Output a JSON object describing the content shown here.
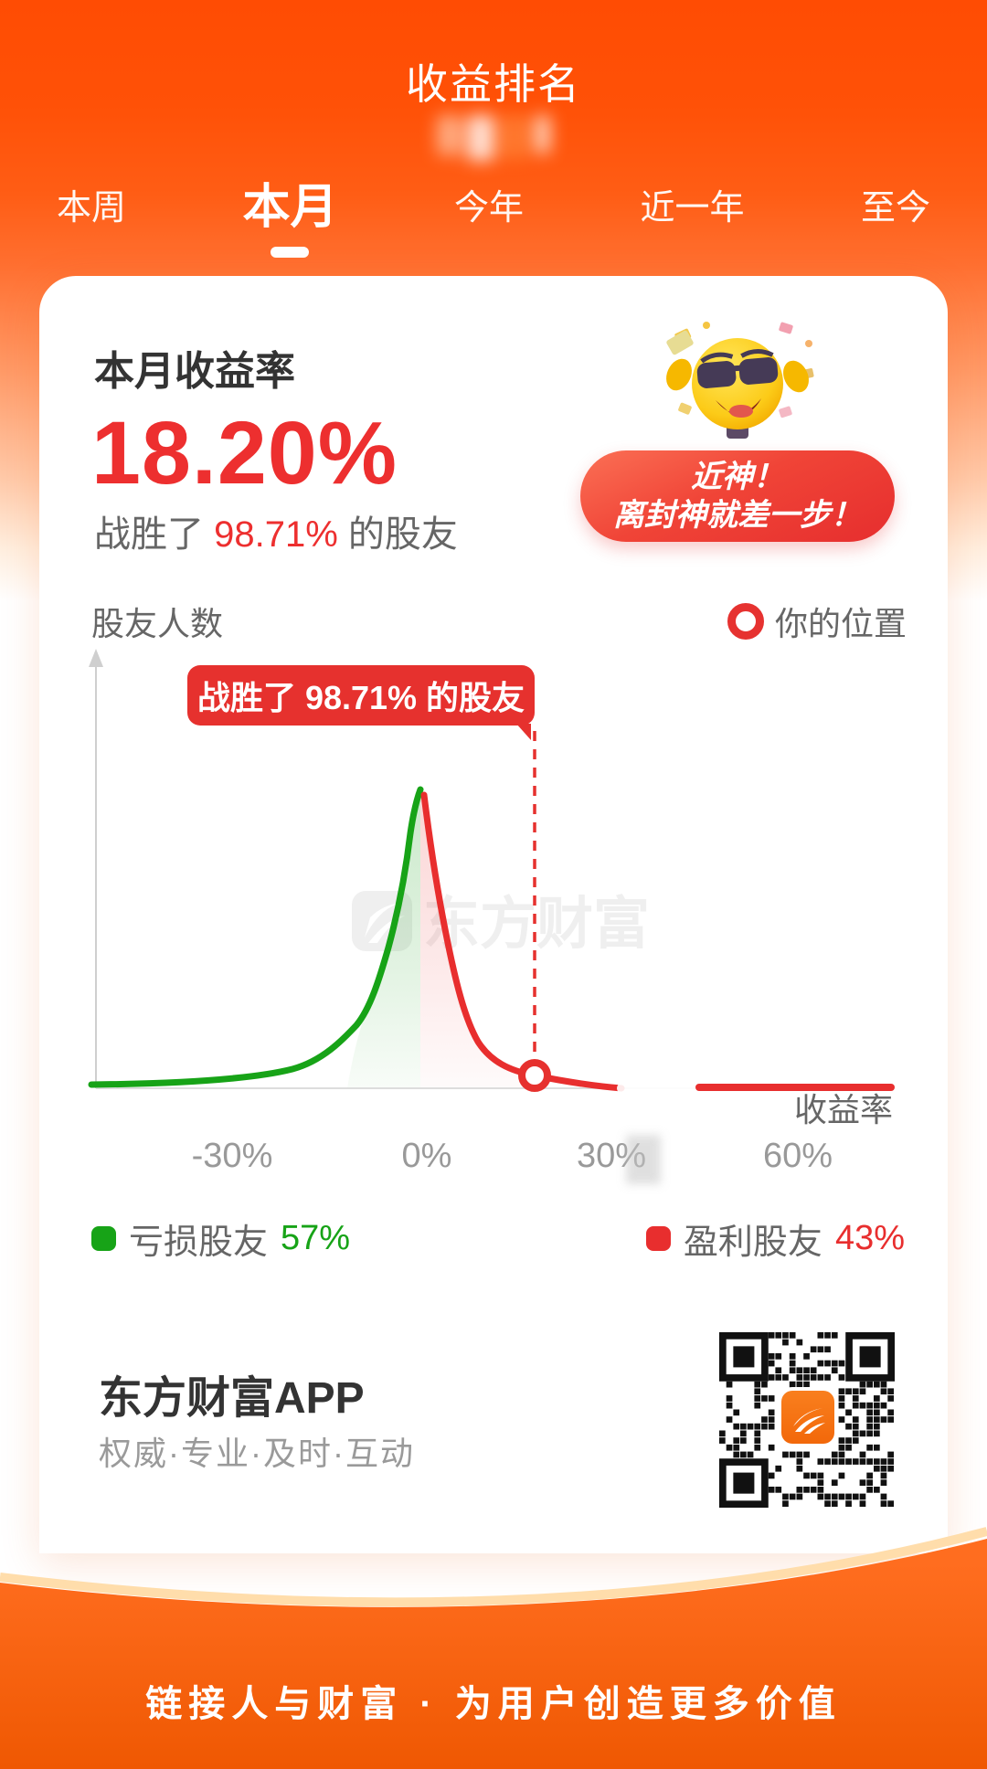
{
  "header": {
    "title": "收益排名"
  },
  "tabs": {
    "items": [
      {
        "label": "本周",
        "active": false
      },
      {
        "label": "本月",
        "active": true
      },
      {
        "label": "今年",
        "active": false
      },
      {
        "label": "近一年",
        "active": false
      },
      {
        "label": "至今",
        "active": false
      }
    ]
  },
  "summary": {
    "metric_label": "本月收益率",
    "return_value": "18.20%",
    "beat_prefix": "战胜了 ",
    "beat_value": "98.71%",
    "beat_suffix": " 的股友",
    "badge_line1": "近神！",
    "badge_line2": "离封神就差一步！",
    "mascot_icon": "money-emoji-with-sunglasses"
  },
  "chart": {
    "y_axis_label": "股友人数",
    "marker_legend": "你的位置",
    "tooltip": "战胜了 98.71% 的股友",
    "x_axis_label": "收益率",
    "watermark": "东方财富",
    "legend": {
      "loss_label": "亏损股友",
      "loss_value": "57%",
      "win_label": "盈利股友",
      "win_value": "43%"
    }
  },
  "chart_data": {
    "type": "area",
    "xlabel": "收益率",
    "ylabel": "股友人数",
    "x_ticks": [
      "-30%",
      "0%",
      "30%",
      "60%"
    ],
    "x_range_pct": [
      -52,
      72
    ],
    "user_position_pct": 18.2,
    "beaten_pct": 98.71,
    "loss_share_pct": 57,
    "win_share_pct": 43,
    "marker_label": "你的位置",
    "annotation": "战胜了 98.71% 的股友",
    "series": [
      {
        "name": "亏损股友",
        "color": "#17a317",
        "points": [
          [
            -52,
            0.01
          ],
          [
            -40,
            0.015
          ],
          [
            -30,
            0.04
          ],
          [
            -24,
            0.09
          ],
          [
            -19,
            0.17
          ],
          [
            -15,
            0.3
          ],
          [
            -12,
            0.47
          ],
          [
            -9,
            0.68
          ],
          [
            -6,
            0.88
          ],
          [
            -3,
            0.97
          ],
          [
            0,
            1.0
          ]
        ]
      },
      {
        "name": "盈利股友",
        "color": "#e82e2e",
        "points": [
          [
            0.6,
            0.97
          ],
          [
            2,
            0.8
          ],
          [
            4,
            0.58
          ],
          [
            6,
            0.37
          ],
          [
            8,
            0.22
          ],
          [
            10,
            0.12
          ],
          [
            13,
            0.07
          ],
          [
            18.2,
            0.045
          ],
          [
            23,
            0.025
          ],
          [
            28,
            0.008
          ],
          [
            34,
            0.005
          ],
          [
            72,
            0.005
          ]
        ]
      }
    ],
    "legend_position": "bottom",
    "grid": false
  },
  "brand": {
    "app_name": "东方财富APP",
    "tagline": "权威·专业·及时·互动",
    "qr_icon": "qr-code-eastmoney-logo"
  },
  "footer": {
    "slogan": "链接人与财富 · 为用户创造更多价值"
  },
  "colors": {
    "accent_orange": "#ff5505",
    "red": "#ed2f2f",
    "green": "#17a317",
    "dark_text": "#333333",
    "gray_text": "#666666",
    "light_gray_text": "#999999"
  }
}
